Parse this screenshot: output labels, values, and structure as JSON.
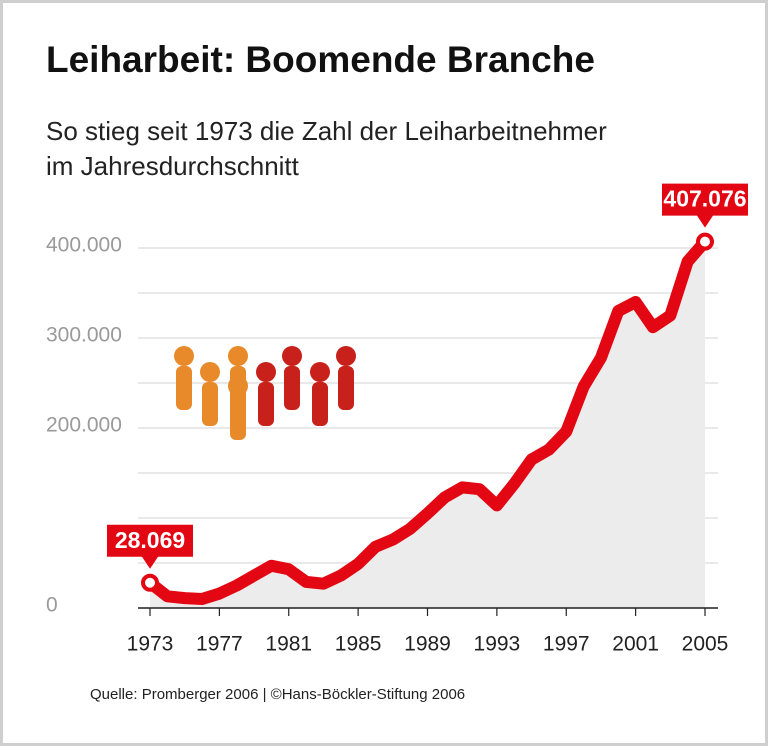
{
  "chart_data": {
    "type": "line",
    "title": "Leiharbeit: Boomende Branche",
    "subtitle": [
      "So stieg seit 1973 die Zahl der Leiharbeitnehmer",
      "im Jahresdurchschnitt"
    ],
    "source": "Quelle: Promberger 2006 | ©Hans-Böckler-Stiftung 2006",
    "x": [
      1973,
      1974,
      1975,
      1976,
      1977,
      1978,
      1979,
      1980,
      1981,
      1982,
      1983,
      1984,
      1985,
      1986,
      1987,
      1988,
      1989,
      1990,
      1991,
      1992,
      1993,
      1994,
      1995,
      1996,
      1997,
      1998,
      1999,
      2000,
      2001,
      2002,
      2003,
      2004,
      2005
    ],
    "series": [
      {
        "color": "#e30613",
        "values": [
          28069,
          13000,
          11000,
          10000,
          16000,
          25000,
          36000,
          47000,
          43000,
          29000,
          27000,
          36000,
          49000,
          68000,
          76000,
          88000,
          105000,
          123000,
          134000,
          132000,
          114000,
          138000,
          165000,
          176000,
          196000,
          246000,
          278000,
          330000,
          340000,
          312000,
          325000,
          385000,
          407076
        ],
        "value_labels": [
          "28.069",
          null,
          null,
          null,
          null,
          null,
          null,
          null,
          null,
          null,
          null,
          null,
          null,
          null,
          null,
          null,
          null,
          null,
          null,
          null,
          null,
          null,
          null,
          null,
          null,
          null,
          null,
          null,
          null,
          null,
          null,
          null,
          "407.076"
        ]
      }
    ],
    "xlim": [
      1973,
      2005
    ],
    "xticks": [
      1973,
      1977,
      1981,
      1985,
      1989,
      1993,
      1997,
      2001,
      2005
    ],
    "ylim": [
      0,
      400000
    ],
    "yticks": [
      {
        "value": 0,
        "label": "0"
      },
      {
        "value": 50000,
        "label": null
      },
      {
        "value": 100000,
        "label": null
      },
      {
        "value": 150000,
        "label": null
      },
      {
        "value": 200000,
        "label": "200.000"
      },
      {
        "value": 250000,
        "label": null
      },
      {
        "value": 300000,
        "label": "300.000"
      },
      {
        "value": 350000,
        "label": null
      },
      {
        "value": 400000,
        "label": "400.000"
      }
    ],
    "grid": true
  }
}
